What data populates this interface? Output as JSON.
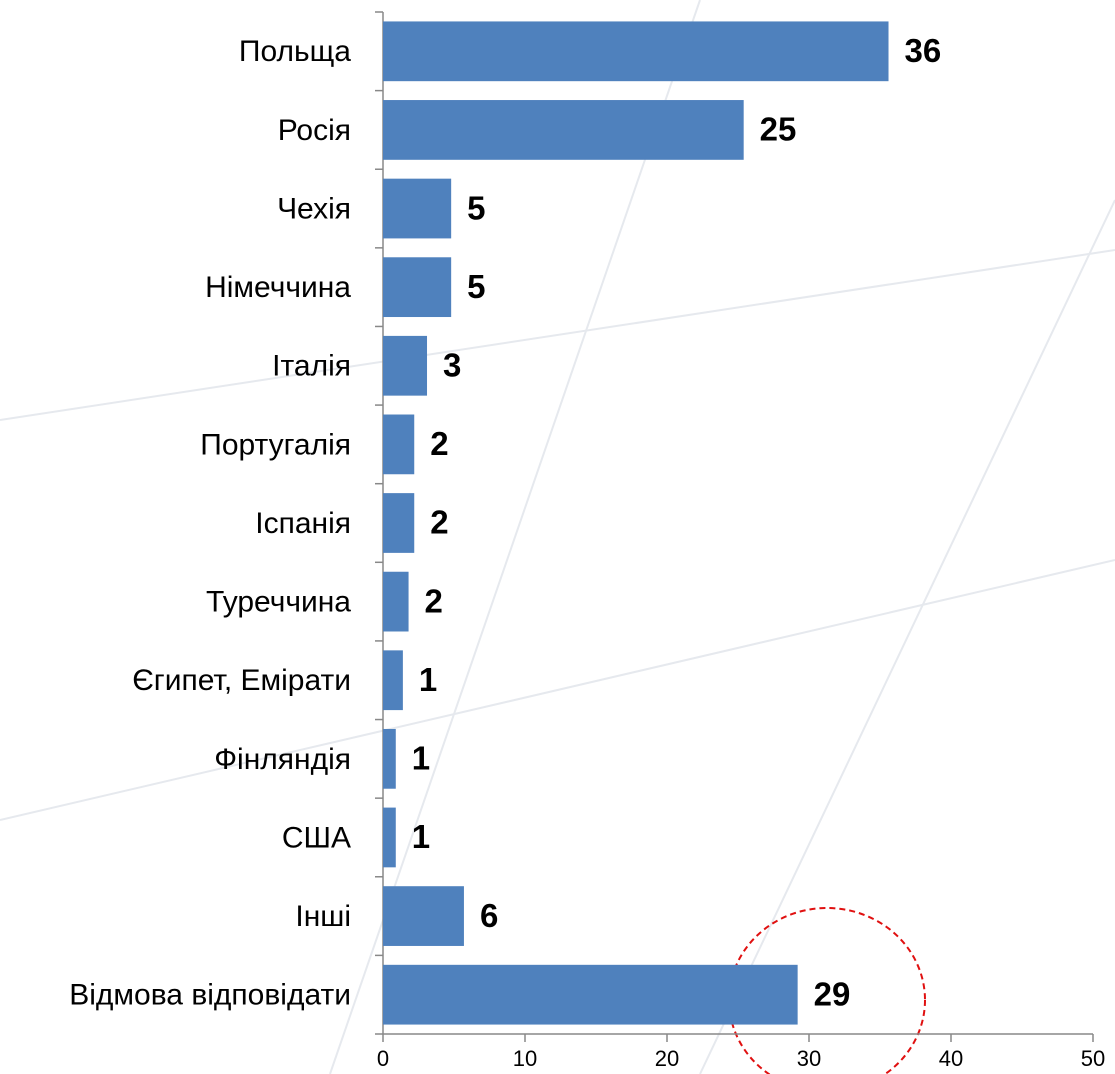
{
  "chart_data": {
    "type": "bar",
    "orientation": "horizontal",
    "categories": [
      "Польща",
      "Росія",
      "Чехія",
      "Німеччина",
      "Італія",
      "Португалія",
      "Іспанія",
      "Туреччина",
      "Єгипет, Емірати",
      "Фінляндія",
      "США",
      "Інші",
      "Відмова відповідати"
    ],
    "values": [
      35.6,
      25.4,
      4.8,
      4.8,
      3.1,
      2.2,
      2.2,
      1.8,
      1.4,
      0.9,
      0.9,
      5.7,
      29.2
    ],
    "value_labels": [
      "36",
      "25",
      "5",
      "5",
      "3",
      "2",
      "2",
      "2",
      "1",
      "1",
      "1",
      "6",
      "29"
    ],
    "color": "#4f81bd",
    "xlim": [
      0,
      50
    ],
    "xticks": [
      0,
      10,
      20,
      30,
      40,
      50
    ],
    "grid": false
  }
}
